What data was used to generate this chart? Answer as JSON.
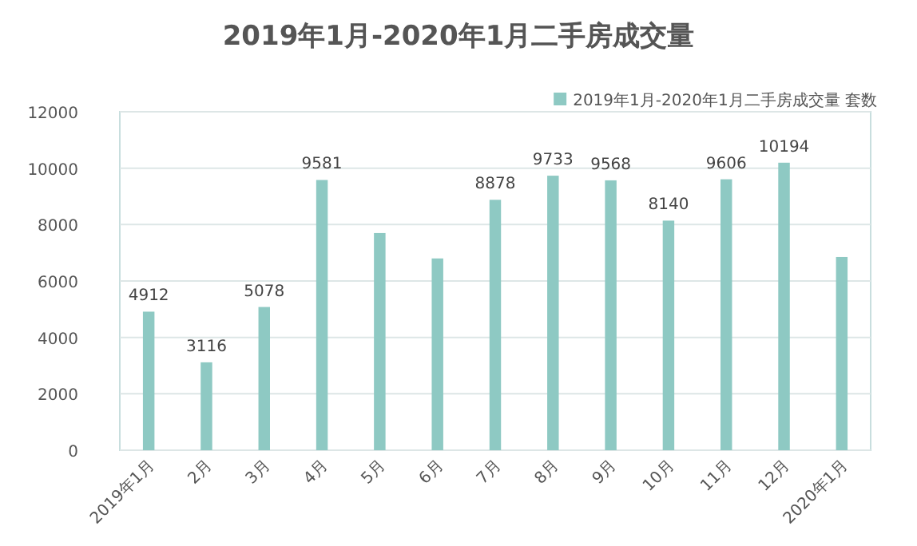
{
  "chart_data": {
    "type": "bar",
    "title": "2019年1月-2020年1月二手房成交量",
    "categories": [
      "2019年1月",
      "2月",
      "3月",
      "4月",
      "5月",
      "6月",
      "7月",
      "8月",
      "9月",
      "10月",
      "11月",
      "12月",
      "2020年1月"
    ],
    "series": [
      {
        "name": "2019年1月-2020年1月二手房成交量 套数",
        "color": "#8ec9c3",
        "values": [
          4912,
          3116,
          5078,
          9581,
          7700,
          6800,
          8878,
          9733,
          9568,
          8140,
          9606,
          10194,
          6850
        ],
        "value_labels": [
          "4912",
          "3116",
          "5078",
          "9581",
          null,
          null,
          "8878",
          "9733",
          "9568",
          "8140",
          "9606",
          "10194",
          null
        ]
      }
    ],
    "ylim": [
      0,
      12000
    ],
    "yticks": [
      0,
      2000,
      4000,
      6000,
      8000,
      10000,
      12000
    ],
    "grid": "y",
    "legend": "top right"
  }
}
